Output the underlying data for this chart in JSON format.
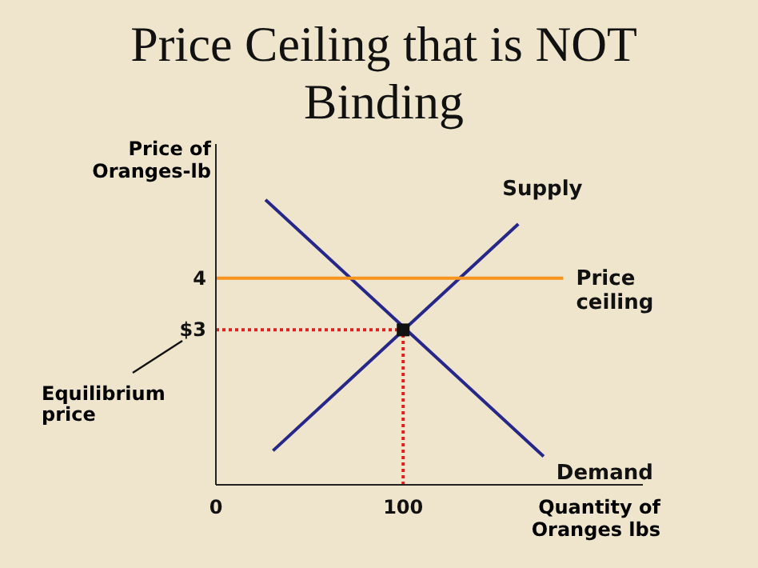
{
  "chart_data": {
    "type": "line",
    "title": "Price Ceiling that is NOT Binding",
    "xlabel": "Quantity of Oranges lbs",
    "ylabel": "Price of Oranges-lb",
    "xlim": [
      0,
      228
    ],
    "xticks": [
      0,
      100
    ],
    "ylim": [
      0,
      6.6
    ],
    "yticks": [
      {
        "value": 3,
        "label": "$3"
      },
      4
    ],
    "grid": false,
    "legend": false,
    "series": [
      {
        "name": "Demand",
        "color": "#27278a",
        "x": [
          26.5,
          175
        ],
        "values": [
          5.52,
          0.55
        ],
        "line_style": "solid",
        "marker": "none"
      },
      {
        "name": "Supply",
        "color": "#27278a",
        "x": [
          30.5,
          161.5
        ],
        "values": [
          0.66,
          5.05
        ],
        "line_style": "solid",
        "marker": "none"
      },
      {
        "name": "Price ceiling",
        "color": "#f7941d",
        "x": [
          0,
          185.5
        ],
        "values": [
          4,
          4
        ],
        "line_style": "solid",
        "marker": "none"
      },
      {
        "color": "#e02020",
        "x": [
          0,
          100
        ],
        "values": [
          3,
          3
        ],
        "line_style": "dotted",
        "marker": "none"
      },
      {
        "color": "#e02020",
        "x": [
          100,
          100
        ],
        "values": [
          0,
          3
        ],
        "line_style": "dotted",
        "marker": "none"
      },
      {
        "type": "scatter",
        "color": "#111111",
        "x": [
          100
        ],
        "values": [
          3
        ],
        "marker": "square"
      }
    ],
    "annotations": [
      "Equilibrium price"
    ]
  }
}
